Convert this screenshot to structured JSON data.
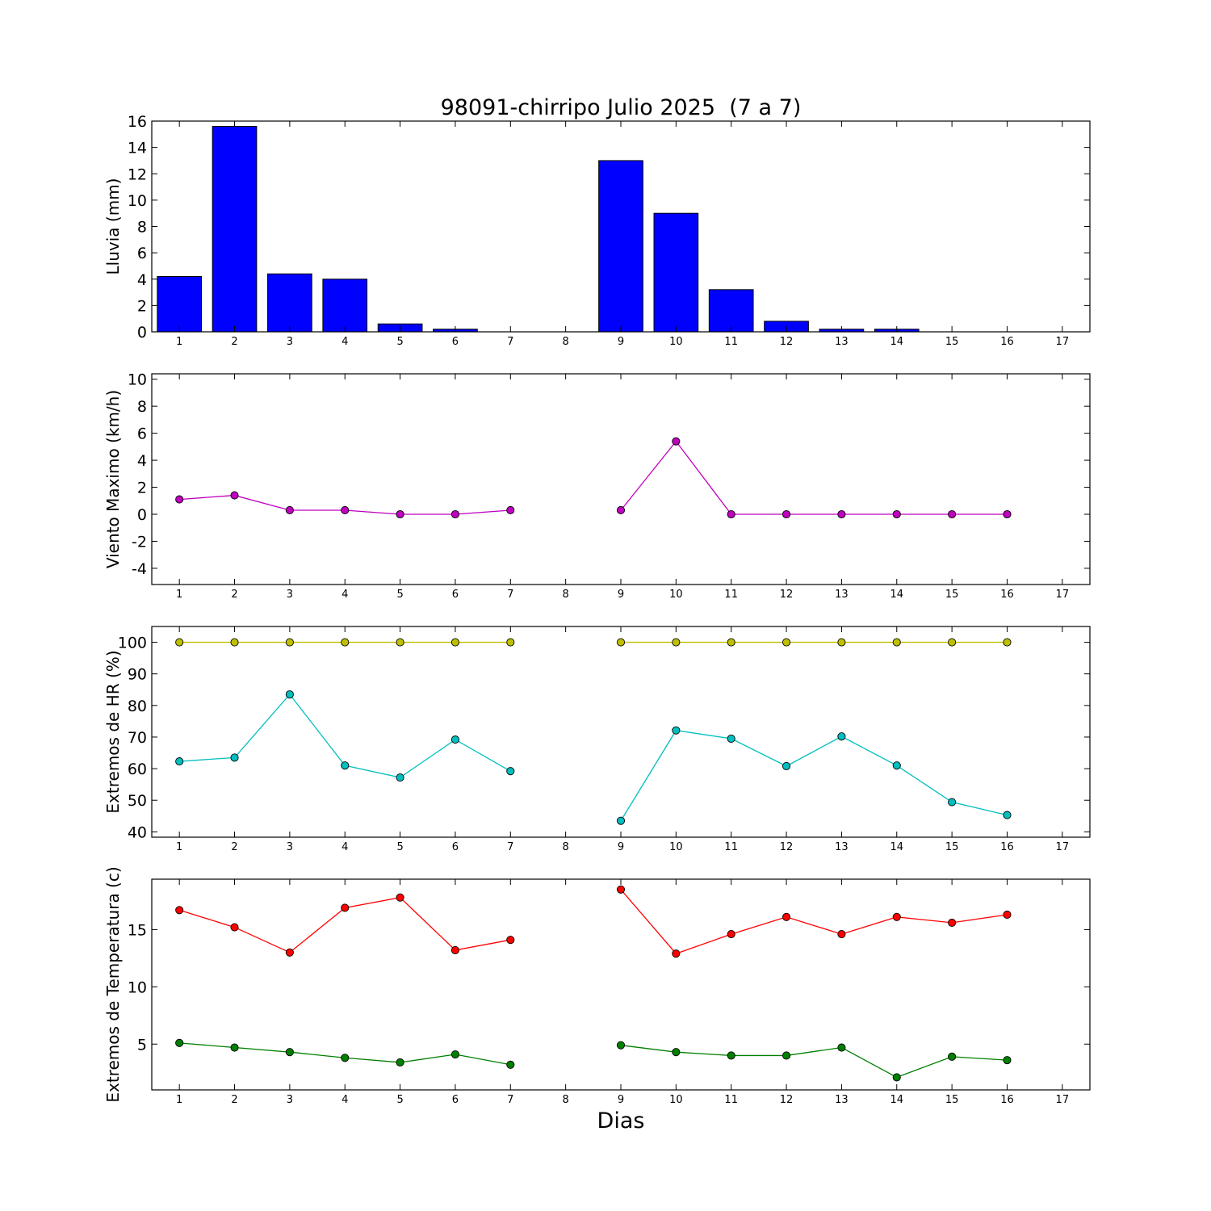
{
  "figure_title": "98091-chirripo Julio 2025  (7 a 7)",
  "xlabel": "Dias",
  "x_ticks": [
    1,
    2,
    3,
    4,
    5,
    6,
    7,
    8,
    9,
    10,
    11,
    12,
    13,
    14,
    15,
    16,
    17
  ],
  "chart_data": [
    {
      "type": "bar",
      "ylabel": "Lluvia (mm)",
      "xlim": [
        0.5,
        17.5
      ],
      "ylim": [
        0,
        16
      ],
      "y_ticks": [
        0,
        2,
        4,
        6,
        8,
        10,
        12,
        14,
        16
      ],
      "series": [
        {
          "color": "#0000ff",
          "x": [
            1,
            2,
            3,
            4,
            5,
            6,
            7,
            8,
            9,
            10,
            11,
            12,
            13,
            14,
            15,
            16
          ],
          "values": [
            4.2,
            15.6,
            4.4,
            4.0,
            0.6,
            0.2,
            0.0,
            0.0,
            13.0,
            9.0,
            3.2,
            0.8,
            0.2,
            0.2,
            0.0,
            0.0
          ]
        }
      ]
    },
    {
      "type": "line",
      "ylabel": "Viento Maximo (km/h)",
      "xlim": [
        0.5,
        17.5
      ],
      "ylim": [
        -5.2,
        10.4
      ],
      "y_ticks": [
        -4,
        -2,
        0,
        2,
        4,
        6,
        8,
        10
      ],
      "series": [
        {
          "color": "#bf00bf",
          "x": [
            1,
            2,
            3,
            4,
            5,
            6,
            7,
            8,
            9,
            10,
            11,
            12,
            13,
            14,
            15,
            16
          ],
          "values": [
            1.1,
            1.4,
            0.3,
            0.3,
            0.0,
            0.0,
            0.3,
            null,
            0.3,
            5.4,
            0.0,
            0.0,
            0.0,
            0.0,
            0.0,
            0.0
          ]
        }
      ]
    },
    {
      "type": "line",
      "ylabel": "Extremos de HR (%)",
      "xlim": [
        0.5,
        17.5
      ],
      "ylim": [
        38.3,
        105
      ],
      "y_ticks": [
        40,
        50,
        60,
        70,
        80,
        90,
        100
      ],
      "series": [
        {
          "color": "#bfbf00",
          "x": [
            1,
            2,
            3,
            4,
            5,
            6,
            7,
            8,
            9,
            10,
            11,
            12,
            13,
            14,
            15,
            16
          ],
          "values": [
            100,
            100,
            100,
            100,
            100,
            100,
            100,
            null,
            100,
            100,
            100,
            100,
            100,
            100,
            100,
            100
          ]
        },
        {
          "color": "#00bfbf",
          "x": [
            1,
            2,
            3,
            4,
            5,
            6,
            7,
            8,
            9,
            10,
            11,
            12,
            13,
            14,
            15,
            16
          ],
          "values": [
            62.3,
            63.5,
            83.5,
            61.0,
            57.2,
            69.2,
            59.2,
            null,
            43.5,
            72.1,
            69.5,
            60.8,
            70.2,
            61.0,
            49.4,
            45.3
          ]
        }
      ]
    },
    {
      "type": "line",
      "ylabel": "Extremos de Temperatura (c)",
      "xlim": [
        0.5,
        17.5
      ],
      "ylim": [
        1.0,
        19.4
      ],
      "y_ticks": [
        5,
        10,
        15
      ],
      "series": [
        {
          "color": "#ff0000",
          "x": [
            1,
            2,
            3,
            4,
            5,
            6,
            7,
            8,
            9,
            10,
            11,
            12,
            13,
            14,
            15,
            16
          ],
          "values": [
            16.7,
            15.2,
            13.0,
            16.9,
            17.8,
            13.2,
            14.1,
            null,
            18.5,
            12.9,
            14.6,
            16.1,
            14.6,
            16.1,
            15.6,
            16.3
          ]
        },
        {
          "color": "#008000",
          "x": [
            1,
            2,
            3,
            4,
            5,
            6,
            7,
            8,
            9,
            10,
            11,
            12,
            13,
            14,
            15,
            16
          ],
          "values": [
            5.1,
            4.7,
            4.3,
            3.8,
            3.4,
            4.1,
            3.2,
            null,
            4.9,
            4.3,
            4.0,
            4.0,
            4.7,
            2.1,
            3.9,
            3.6
          ]
        }
      ]
    }
  ]
}
